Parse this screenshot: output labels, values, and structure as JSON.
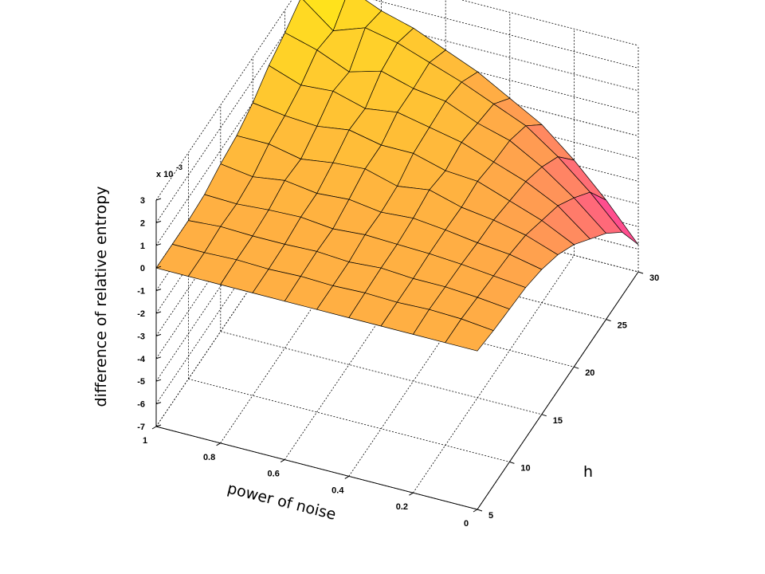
{
  "chart_data": {
    "type": "surface",
    "xlabel": "power of noise",
    "ylabel": "h",
    "zlabel": "difference of relative entropy",
    "z_multiplier_label": {
      "base": "x 10",
      "exponent": "-3"
    },
    "x_ticks": [
      "1",
      "0.8",
      "0.6",
      "0.4",
      "0.2",
      "0"
    ],
    "y_ticks": [
      "5",
      "10",
      "15",
      "20",
      "25",
      "30"
    ],
    "z_ticks": [
      "3",
      "2",
      "1",
      "0",
      "-1",
      "-2",
      "-3",
      "-4",
      "-5",
      "-6",
      "-7"
    ],
    "xlim": [
      0,
      1
    ],
    "ylim": [
      5,
      30
    ],
    "zlim": [
      -7,
      3
    ],
    "grid": true,
    "colormap": "spring (magenta to yellow)",
    "x": [
      0,
      0.1,
      0.2,
      0.3,
      0.4,
      0.5,
      0.6,
      0.7,
      0.8,
      0.9,
      1.0
    ],
    "y": [
      5,
      7.5,
      10,
      12.5,
      15,
      17.5,
      20,
      22.5,
      25,
      27.5,
      30
    ],
    "z_scaled_1e-3": [
      [
        0,
        0,
        0,
        0,
        0,
        0,
        0,
        0,
        0,
        0,
        0
      ],
      [
        -0.15,
        0,
        0.05,
        0,
        0.05,
        0,
        0.05,
        0,
        0.05,
        0,
        0
      ],
      [
        -0.25,
        -0.1,
        0,
        0,
        0.1,
        0,
        0.1,
        0.05,
        0.05,
        0.1,
        0
      ],
      [
        -0.35,
        -0.2,
        -0.05,
        0.05,
        0.1,
        0.15,
        0.05,
        0.2,
        0.15,
        0.05,
        0.1
      ],
      [
        -0.6,
        -0.3,
        -0.15,
        0.05,
        0.2,
        0.1,
        0.3,
        0.2,
        0.4,
        0.2,
        0.4
      ],
      [
        -1.0,
        -0.5,
        -0.2,
        0.0,
        0.4,
        0.2,
        0.6,
        0.5,
        0.3,
        0.6,
        0.6
      ],
      [
        -1.6,
        -0.9,
        -0.4,
        0.1,
        0.2,
        0.6,
        0.6,
        0.9,
        0.7,
        0.8,
        1.0
      ],
      [
        -2.4,
        -1.3,
        -0.6,
        -0.1,
        0.4,
        0.7,
        1.0,
        0.8,
        1.2,
        1.1,
        1.6
      ],
      [
        -3.2,
        -2.0,
        -1.0,
        -0.2,
        0.2,
        0.8,
        1.0,
        1.4,
        1.0,
        1.6,
        2.0
      ],
      [
        -4.2,
        -2.8,
        -1.6,
        -0.6,
        0.0,
        0.6,
        1.1,
        1.6,
        1.9,
        1.4,
        2.5
      ],
      [
        -5.8,
        -4.2,
        -2.8,
        -1.6,
        -0.8,
        0.0,
        0.6,
        1.2,
        1.6,
        2.2,
        2.9
      ]
    ]
  }
}
